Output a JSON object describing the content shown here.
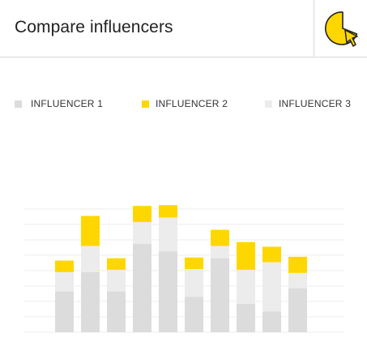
{
  "header": {
    "title": "Compare influencers",
    "logo_icon": "pie-chart-cursor-icon"
  },
  "colors": {
    "influencer_1": "#dcdcdc",
    "influencer_2": "#ffd700",
    "influencer_3": "#ececec",
    "gridline": "#eeeeee",
    "logo_fill": "#ffd700",
    "logo_stroke": "#222222"
  },
  "legend": [
    {
      "label": "INFLUENCER 1",
      "color": "#dcdcdc"
    },
    {
      "label": "INFLUENCER 2",
      "color": "#ffd700"
    },
    {
      "label": "INFLUENCER 3",
      "color": "#ececec"
    }
  ],
  "chart_data": {
    "type": "bar",
    "stacked": true,
    "grid": true,
    "legend_position": "top",
    "categories": [
      "",
      "",
      "",
      "",
      "",
      "",
      "",
      "",
      "",
      ""
    ],
    "series": [
      {
        "name": "INFLUENCER 1",
        "values": [
          53,
          78,
          53,
          115,
          105,
          46,
          96,
          37,
          27,
          57
        ]
      },
      {
        "name": "INFLUENCER 3",
        "values": [
          25,
          34,
          28,
          28,
          44,
          36,
          16,
          44,
          64,
          20
        ]
      },
      {
        "name": "INFLUENCER 2",
        "values": [
          15,
          39,
          15,
          21,
          16,
          15,
          21,
          36,
          20,
          21
        ]
      }
    ],
    "ylim": [
      0,
      160
    ]
  }
}
